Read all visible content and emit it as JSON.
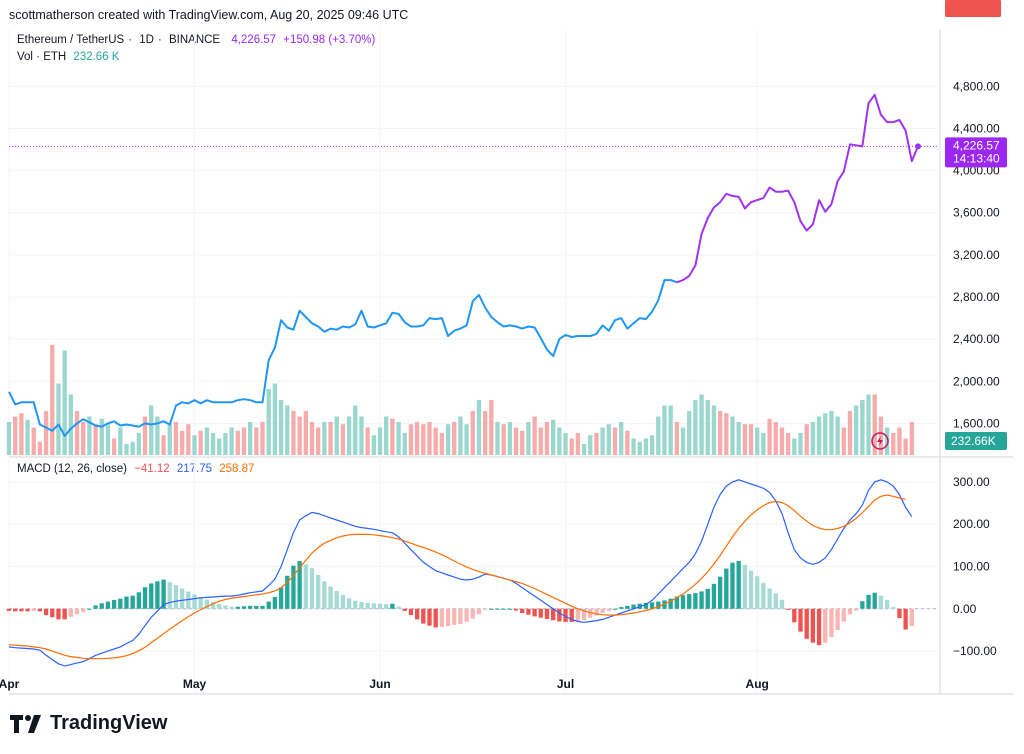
{
  "header": {
    "attribution": "scottmatherson created with TradingView.com, Aug 20, 2025 09:46 UTC"
  },
  "symbol": {
    "name": "Ethereum / TetherUS",
    "interval": "1D",
    "exchange": "BINANCE",
    "separator": "·",
    "price": "4,226.57",
    "change": "+150.98 (+3.70%)"
  },
  "volume_legend": {
    "label": "Vol · ETH",
    "value": "232.66 K"
  },
  "macd_legend": {
    "label": "MACD (12, 26, close)",
    "hist": "−41.12",
    "macd": "217.75",
    "signal": "258.87"
  },
  "price_axis": {
    "ticks": [
      "4,800.00",
      "4,400.00",
      "4,000.00",
      "3,600.00",
      "3,200.00",
      "2,800.00",
      "2,400.00",
      "2,000.00",
      "1,600.00"
    ],
    "tick_values": [
      4800,
      4400,
      4000,
      3600,
      3200,
      2800,
      2400,
      2000,
      1600
    ],
    "last_price_label": "4,226.57",
    "countdown": "14:13:40",
    "volume_label": "232.66K"
  },
  "macd_axis": {
    "ticks": [
      "300.00",
      "200.00",
      "100.00",
      "0.00",
      "−100.00"
    ],
    "tick_values": [
      300,
      200,
      100,
      0,
      -100
    ],
    "signal_label": "258.87",
    "macd_label": "217.75",
    "hist_label": "−41.12"
  },
  "time_axis": {
    "labels": [
      "Apr",
      "May",
      "Jun",
      "Jul",
      "Aug"
    ]
  },
  "colors": {
    "blue_line": "#2196f3",
    "purple_line": "#a033f2",
    "macd_line": "#2962ff",
    "signal_line": "#ff6d00",
    "up": "#26a69a",
    "down": "#ef5350",
    "up_light": "#a5dbd4",
    "down_light": "#f7b7b5"
  },
  "icons": {
    "logo": "tradingview-logo-icon",
    "alert": "lightning-icon"
  },
  "brand": {
    "name": "TradingView"
  },
  "chart_data": {
    "type": "line",
    "title": "Ethereum / TetherUS · 1D · BINANCE",
    "price_range": [
      1300,
      5050
    ],
    "price_series": [
      1900,
      1780,
      1800,
      1800,
      1800,
      1590,
      1560,
      1530,
      1590,
      1480,
      1550,
      1600,
      1640,
      1610,
      1580,
      1570,
      1600,
      1620,
      1580,
      1590,
      1580,
      1570,
      1600,
      1590,
      1600,
      1620,
      1590,
      1770,
      1800,
      1790,
      1820,
      1790,
      1820,
      1800,
      1800,
      1800,
      1800,
      1820,
      1830,
      1820,
      1800,
      1800,
      2200,
      2320,
      2580,
      2510,
      2490,
      2670,
      2610,
      2550,
      2520,
      2470,
      2500,
      2490,
      2520,
      2510,
      2540,
      2670,
      2520,
      2510,
      2530,
      2550,
      2650,
      2640,
      2560,
      2520,
      2520,
      2530,
      2600,
      2590,
      2600,
      2430,
      2480,
      2500,
      2530,
      2760,
      2820,
      2700,
      2610,
      2560,
      2520,
      2530,
      2520,
      2500,
      2520,
      2510,
      2410,
      2300,
      2240,
      2400,
      2440,
      2420,
      2430,
      2430,
      2430,
      2450,
      2530,
      2480,
      2580,
      2600,
      2500,
      2550,
      2600,
      2590,
      2660,
      2770,
      2960,
      2960,
      2940,
      2960,
      3000,
      3100,
      3400,
      3550,
      3650,
      3700,
      3780,
      3760,
      3750,
      3640,
      3700,
      3720,
      3740,
      3840,
      3800,
      3800,
      3810,
      3700,
      3520,
      3430,
      3490,
      3720,
      3610,
      3680,
      3900,
      3990,
      4250,
      4240,
      4230,
      4640,
      4720,
      4530,
      4460,
      4460,
      4480,
      4380,
      4090,
      4230
    ],
    "series_split_index": 108,
    "volume": [
      {
        "v": 0.3,
        "up": true
      },
      {
        "v": 0.35,
        "up": false
      },
      {
        "v": 0.38,
        "up": false
      },
      {
        "v": 0.32,
        "up": true
      },
      {
        "v": 0.25,
        "up": false
      },
      {
        "v": 0.12,
        "up": false
      },
      {
        "v": 0.4,
        "up": false
      },
      {
        "v": 1.0,
        "up": false
      },
      {
        "v": 0.65,
        "up": true
      },
      {
        "v": 0.95,
        "up": true
      },
      {
        "v": 0.55,
        "up": true
      },
      {
        "v": 0.4,
        "up": false
      },
      {
        "v": 0.3,
        "up": false
      },
      {
        "v": 0.35,
        "up": true
      },
      {
        "v": 0.28,
        "up": false
      },
      {
        "v": 0.33,
        "up": true
      },
      {
        "v": 0.28,
        "up": true
      },
      {
        "v": 0.15,
        "up": false
      },
      {
        "v": 0.25,
        "up": true
      },
      {
        "v": 0.1,
        "up": true
      },
      {
        "v": 0.12,
        "up": true
      },
      {
        "v": 0.2,
        "up": true
      },
      {
        "v": 0.35,
        "up": false
      },
      {
        "v": 0.45,
        "up": true
      },
      {
        "v": 0.35,
        "up": true
      },
      {
        "v": 0.18,
        "up": false
      },
      {
        "v": 0.28,
        "up": true
      },
      {
        "v": 0.3,
        "up": false
      },
      {
        "v": 0.22,
        "up": false
      },
      {
        "v": 0.28,
        "up": false
      },
      {
        "v": 0.18,
        "up": true
      },
      {
        "v": 0.22,
        "up": false
      },
      {
        "v": 0.25,
        "up": true
      },
      {
        "v": 0.2,
        "up": true
      },
      {
        "v": 0.15,
        "up": true
      },
      {
        "v": 0.2,
        "up": true
      },
      {
        "v": 0.25,
        "up": true
      },
      {
        "v": 0.22,
        "up": false
      },
      {
        "v": 0.25,
        "up": false
      },
      {
        "v": 0.3,
        "up": true
      },
      {
        "v": 0.25,
        "up": false
      },
      {
        "v": 0.3,
        "up": false
      },
      {
        "v": 0.6,
        "up": true
      },
      {
        "v": 0.65,
        "up": true
      },
      {
        "v": 0.5,
        "up": true
      },
      {
        "v": 0.45,
        "up": true
      },
      {
        "v": 0.4,
        "up": false
      },
      {
        "v": 0.35,
        "up": false
      },
      {
        "v": 0.4,
        "up": false
      },
      {
        "v": 0.3,
        "up": false
      },
      {
        "v": 0.25,
        "up": false
      },
      {
        "v": 0.3,
        "up": true
      },
      {
        "v": 0.3,
        "up": false
      },
      {
        "v": 0.35,
        "up": true
      },
      {
        "v": 0.28,
        "up": false
      },
      {
        "v": 0.35,
        "up": true
      },
      {
        "v": 0.45,
        "up": true
      },
      {
        "v": 0.35,
        "up": true
      },
      {
        "v": 0.25,
        "up": false
      },
      {
        "v": 0.18,
        "up": true
      },
      {
        "v": 0.25,
        "up": true
      },
      {
        "v": 0.35,
        "up": true
      },
      {
        "v": 0.33,
        "up": false
      },
      {
        "v": 0.3,
        "up": true
      },
      {
        "v": 0.2,
        "up": true
      },
      {
        "v": 0.28,
        "up": false
      },
      {
        "v": 0.3,
        "up": false
      },
      {
        "v": 0.28,
        "up": false
      },
      {
        "v": 0.3,
        "up": false
      },
      {
        "v": 0.25,
        "up": false
      },
      {
        "v": 0.2,
        "up": false
      },
      {
        "v": 0.28,
        "up": true
      },
      {
        "v": 0.3,
        "up": false
      },
      {
        "v": 0.35,
        "up": true
      },
      {
        "v": 0.28,
        "up": true
      },
      {
        "v": 0.4,
        "up": false
      },
      {
        "v": 0.5,
        "up": true
      },
      {
        "v": 0.4,
        "up": false
      },
      {
        "v": 0.5,
        "up": false
      },
      {
        "v": 0.3,
        "up": true
      },
      {
        "v": 0.28,
        "up": false
      },
      {
        "v": 0.3,
        "up": true
      },
      {
        "v": 0.25,
        "up": false
      },
      {
        "v": 0.22,
        "up": false
      },
      {
        "v": 0.3,
        "up": true
      },
      {
        "v": 0.35,
        "up": false
      },
      {
        "v": 0.25,
        "up": false
      },
      {
        "v": 0.3,
        "up": false
      },
      {
        "v": 0.32,
        "up": true
      },
      {
        "v": 0.25,
        "up": true
      },
      {
        "v": 0.2,
        "up": true
      },
      {
        "v": 0.15,
        "up": false
      },
      {
        "v": 0.2,
        "up": false
      },
      {
        "v": 0.1,
        "up": true
      },
      {
        "v": 0.18,
        "up": true
      },
      {
        "v": 0.2,
        "up": false
      },
      {
        "v": 0.25,
        "up": true
      },
      {
        "v": 0.28,
        "up": true
      },
      {
        "v": 0.25,
        "up": false
      },
      {
        "v": 0.3,
        "up": true
      },
      {
        "v": 0.22,
        "up": false
      },
      {
        "v": 0.15,
        "up": true
      },
      {
        "v": 0.12,
        "up": true
      },
      {
        "v": 0.15,
        "up": true
      },
      {
        "v": 0.18,
        "up": true
      },
      {
        "v": 0.35,
        "up": true
      },
      {
        "v": 0.45,
        "up": true
      },
      {
        "v": 0.45,
        "up": true
      },
      {
        "v": 0.3,
        "up": false
      },
      {
        "v": 0.25,
        "up": true
      },
      {
        "v": 0.4,
        "up": true
      },
      {
        "v": 0.5,
        "up": true
      },
      {
        "v": 0.55,
        "up": true
      },
      {
        "v": 0.5,
        "up": true
      },
      {
        "v": 0.45,
        "up": true
      },
      {
        "v": 0.4,
        "up": false
      },
      {
        "v": 0.38,
        "up": false
      },
      {
        "v": 0.35,
        "up": true
      },
      {
        "v": 0.3,
        "up": true
      },
      {
        "v": 0.28,
        "up": false
      },
      {
        "v": 0.28,
        "up": false
      },
      {
        "v": 0.25,
        "up": true
      },
      {
        "v": 0.2,
        "up": true
      },
      {
        "v": 0.33,
        "up": false
      },
      {
        "v": 0.3,
        "up": false
      },
      {
        "v": 0.25,
        "up": false
      },
      {
        "v": 0.2,
        "up": false
      },
      {
        "v": 0.15,
        "up": true
      },
      {
        "v": 0.2,
        "up": true
      },
      {
        "v": 0.28,
        "up": false
      },
      {
        "v": 0.3,
        "up": true
      },
      {
        "v": 0.35,
        "up": true
      },
      {
        "v": 0.38,
        "up": true
      },
      {
        "v": 0.4,
        "up": true
      },
      {
        "v": 0.35,
        "up": true
      },
      {
        "v": 0.25,
        "up": false
      },
      {
        "v": 0.4,
        "up": false
      },
      {
        "v": 0.45,
        "up": true
      },
      {
        "v": 0.5,
        "up": true
      },
      {
        "v": 0.55,
        "up": true
      },
      {
        "v": 0.55,
        "up": false
      },
      {
        "v": 0.35,
        "up": false
      },
      {
        "v": 0.25,
        "up": true
      },
      {
        "v": 0.2,
        "up": false
      },
      {
        "v": 0.25,
        "up": false
      },
      {
        "v": 0.15,
        "up": false
      },
      {
        "v": 0.3,
        "up": false
      }
    ],
    "macd_range": [
      -140,
      340
    ],
    "macd_line": [
      -90,
      -92,
      -93,
      -94,
      -95,
      -98,
      -110,
      -120,
      -130,
      -135,
      -132,
      -128,
      -125,
      -118,
      -110,
      -105,
      -100,
      -95,
      -90,
      -82,
      -75,
      -60,
      -40,
      -20,
      -5,
      10,
      15,
      18,
      20,
      22,
      24,
      26,
      27,
      28,
      29,
      30,
      30,
      32,
      35,
      38,
      40,
      42,
      55,
      70,
      100,
      140,
      180,
      210,
      220,
      228,
      225,
      220,
      215,
      210,
      205,
      200,
      195,
      192,
      190,
      188,
      185,
      182,
      180,
      170,
      155,
      140,
      125,
      110,
      100,
      90,
      85,
      80,
      75,
      70,
      68,
      70,
      75,
      82,
      80,
      76,
      72,
      68,
      60,
      50,
      40,
      30,
      20,
      10,
      0,
      -10,
      -18,
      -25,
      -30,
      -32,
      -30,
      -28,
      -25,
      -20,
      -15,
      -10,
      -5,
      0,
      5,
      10,
      20,
      35,
      50,
      65,
      80,
      95,
      110,
      130,
      160,
      200,
      240,
      270,
      290,
      300,
      305,
      300,
      295,
      290,
      285,
      275,
      255,
      225,
      180,
      140,
      120,
      110,
      105,
      110,
      120,
      140,
      165,
      190,
      210,
      225,
      245,
      280,
      300,
      305,
      300,
      290,
      270,
      240,
      217.75
    ],
    "signal_line": [
      -85,
      -86,
      -87,
      -88,
      -90,
      -92,
      -95,
      -100,
      -105,
      -110,
      -113,
      -115,
      -117,
      -118,
      -118,
      -118,
      -117,
      -116,
      -114,
      -111,
      -106,
      -99,
      -91,
      -80,
      -70,
      -59,
      -48,
      -38,
      -28,
      -19,
      -10,
      -2,
      5,
      12,
      18,
      22,
      25,
      27,
      29,
      31,
      33,
      35,
      38,
      42,
      50,
      62,
      78,
      97,
      115,
      132,
      145,
      155,
      162,
      168,
      172,
      175,
      176,
      176,
      176,
      175,
      173,
      171,
      168,
      165,
      160,
      155,
      150,
      145,
      140,
      134,
      128,
      121,
      113,
      106,
      99,
      93,
      88,
      84,
      80,
      76,
      72,
      68,
      64,
      60,
      54,
      48,
      41,
      34,
      27,
      20,
      13,
      6,
      0,
      -5,
      -9,
      -12,
      -14,
      -15,
      -15,
      -14,
      -12,
      -10,
      -7,
      -4,
      0,
      5,
      11,
      18,
      26,
      35,
      46,
      58,
      72,
      88,
      106,
      126,
      148,
      170,
      190,
      207,
      222,
      234,
      244,
      251,
      254,
      251,
      244,
      232,
      219,
      207,
      197,
      191,
      187,
      187,
      190,
      195,
      203,
      214,
      227,
      242,
      257,
      266,
      269,
      266,
      262,
      258.87
    ],
    "histogram": [
      -5,
      -6,
      -6,
      -6,
      -5,
      -6,
      -15,
      -20,
      -25,
      -25,
      -19,
      -13,
      -8,
      0,
      8,
      13,
      17,
      21,
      24,
      29,
      31,
      39,
      51,
      60,
      65,
      69,
      63,
      56,
      48,
      41,
      34,
      28,
      22,
      16,
      11,
      8,
      5,
      5,
      6,
      7,
      7,
      7,
      17,
      28,
      50,
      78,
      102,
      113,
      105,
      96,
      80,
      65,
      53,
      42,
      33,
      25,
      19,
      16,
      14,
      13,
      12,
      11,
      12,
      5,
      -5,
      -15,
      -25,
      -35,
      -40,
      -44,
      -43,
      -41,
      -38,
      -36,
      -31,
      -23,
      -13,
      -2,
      0,
      0,
      0,
      0,
      -4,
      -10,
      -14,
      -18,
      -21,
      -24,
      -27,
      -30,
      -31,
      -31,
      -30,
      -27,
      -21,
      -16,
      -10,
      -5,
      0,
      4,
      7,
      10,
      12,
      14,
      15,
      17,
      20,
      24,
      29,
      32,
      35,
      37,
      41,
      47,
      59,
      76,
      95,
      109,
      113,
      104,
      90,
      77,
      61,
      48,
      36,
      21,
      -2,
      -32,
      -54,
      -71,
      -80,
      -86,
      -80,
      -67,
      -50,
      -30,
      -13,
      -4,
      18,
      33,
      38,
      31,
      21,
      4,
      -22,
      -49,
      -41.12
    ],
    "time_labels": [
      "Apr",
      "May",
      "Jun",
      "Jul",
      "Aug"
    ],
    "time_label_indices": [
      0,
      30,
      60,
      90,
      121
    ],
    "ylabel": "",
    "xlabel": ""
  }
}
